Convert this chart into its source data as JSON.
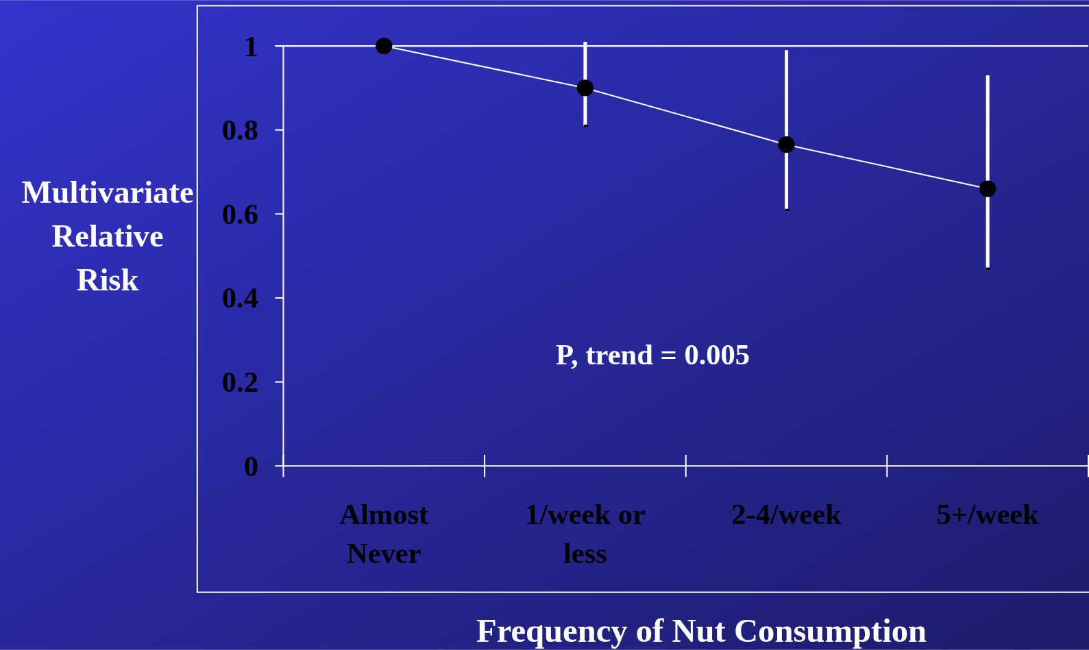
{
  "chart_data": {
    "type": "line",
    "xlabel": "Frequency of Nut Consumption",
    "ylabel": "Multivariate Relative Risk",
    "categories": [
      "Almost Never",
      "1/week or less",
      "2-4/week",
      "5+/week"
    ],
    "series": [
      {
        "color": "#000000",
        "values": [
          1.0,
          0.9,
          0.765,
          0.66
        ],
        "errors": [
          null,
          [
            0.81,
            1.01
          ],
          [
            0.61,
            0.99
          ],
          [
            0.47,
            0.93
          ]
        ]
      }
    ],
    "ylim": [
      0,
      1
    ],
    "yticks": [
      0,
      0.2,
      0.4,
      0.6,
      0.8,
      1
    ],
    "marker": "circle",
    "ref_lines": [
      {
        "axis": "y",
        "value": 1,
        "color": "#ffffff"
      }
    ],
    "annotations": [
      "P, trend = 0.005"
    ]
  }
}
